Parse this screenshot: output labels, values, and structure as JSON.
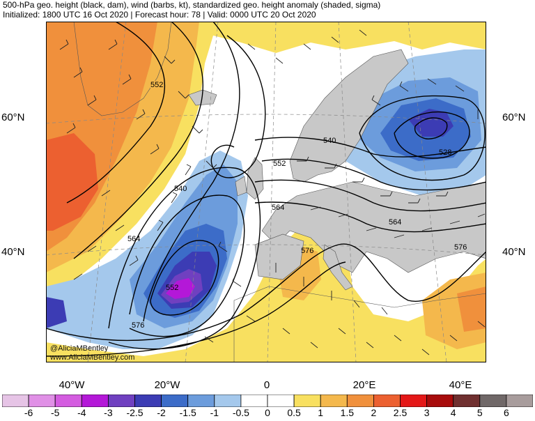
{
  "title": {
    "line1": "500-hPa geo. height (black, dam), wind (barbs, kt), standardized geo. height anomaly (shaded, sigma)",
    "line2": "Initialized: 1800 UTC 16 Oct 2020 | Forecast hour: 78 | Valid: 0000 UTC 20 Oct 2020"
  },
  "map": {
    "lat_labels": [
      "60°N",
      "40°N"
    ],
    "lon_labels": [
      "40°W",
      "20°W",
      "0",
      "20°E",
      "40°E"
    ],
    "contour_labels": [
      "552",
      "540",
      "564",
      "552",
      "576",
      "540",
      "552",
      "564",
      "528",
      "564",
      "576",
      "576"
    ],
    "credit_handle": "@AliciaMBentley",
    "credit_url": "www.AliciaMBentley.com"
  },
  "colorbar": {
    "ticks": [
      "-6",
      "-5",
      "-4",
      "-3",
      "-2.5",
      "-2",
      "-1.5",
      "-1",
      "-0.5",
      "0",
      "0.5",
      "1",
      "1.5",
      "2",
      "2.5",
      "3",
      "4",
      "5",
      "6"
    ],
    "colors": [
      "#e6c4e6",
      "#e090e6",
      "#d45ce0",
      "#b418d8",
      "#7040c0",
      "#3c3cb4",
      "#3c6cc8",
      "#6c9cdc",
      "#a4c8ec",
      "#ffffff",
      "#ffffff",
      "#f8e060",
      "#f4b84c",
      "#f0903c",
      "#ec6030",
      "#e41818",
      "#a80c0c",
      "#703030",
      "#706868",
      "#a89c9c"
    ]
  }
}
